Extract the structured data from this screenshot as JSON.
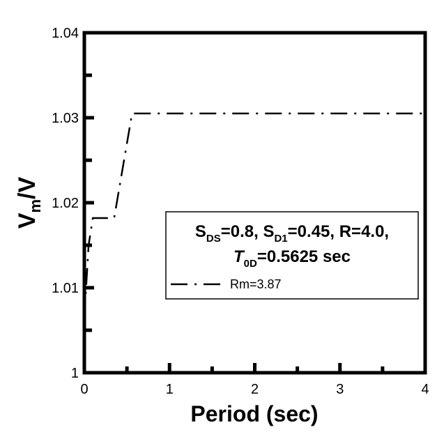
{
  "chart_data": {
    "type": "line",
    "x_label": "Period (sec)",
    "y_label": [
      "V",
      "m",
      "/V"
    ],
    "x": [
      0,
      0.05,
      0.1,
      0.35,
      0.56,
      4.0
    ],
    "series": [
      {
        "name": "Rm=3.87",
        "color": "#000000",
        "values": [
          1.0065,
          1.015,
          1.0182,
          1.0182,
          1.0305,
          1.0305
        ]
      }
    ],
    "xlim": [
      0,
      4
    ],
    "xticks": [
      0,
      1,
      2,
      3,
      4
    ],
    "xminor": [
      0.5,
      1.5,
      2.5,
      3.5
    ],
    "ylim": [
      1.0,
      1.04
    ],
    "yticks": [
      1,
      1.01,
      1.02,
      1.03,
      1.04
    ],
    "yminor": [
      1.005,
      1.015,
      1.025,
      1.035
    ],
    "annotation": [
      [
        "S",
        "DS",
        "=0.8, S",
        "D1",
        "=0.45, R=4.0,"
      ],
      [
        "T",
        "0D",
        "=0.5625 sec"
      ]
    ]
  }
}
